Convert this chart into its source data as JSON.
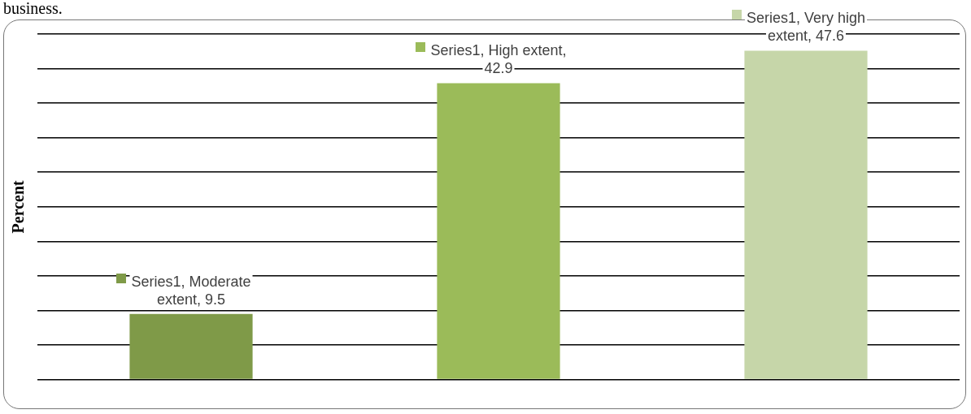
{
  "chart_data": {
    "type": "bar",
    "annotations": [
      "business."
    ],
    "ylabel": "Percent",
    "categories": [
      null,
      null,
      null
    ],
    "values": [
      9.5,
      42.9,
      47.6
    ],
    "colors": [
      "#7f9a48",
      "#9bbb59",
      "#c6d6a9"
    ],
    "value_labels": [
      "Series1, Moderate extent, 9.5",
      "Series1, High extent, 42.9",
      "Series1, Very high extent, 47.6"
    ],
    "ylim": [
      0,
      50
    ],
    "yticks": [
      {
        "value": 0,
        "label": null
      },
      {
        "value": 5,
        "label": null
      },
      {
        "value": 10,
        "label": null
      },
      {
        "value": 15,
        "label": null
      },
      {
        "value": 20,
        "label": null
      },
      {
        "value": 25,
        "label": null
      },
      {
        "value": 30,
        "label": null
      },
      {
        "value": 35,
        "label": null
      },
      {
        "value": 40,
        "label": null
      },
      {
        "value": 45,
        "label": null
      },
      {
        "value": 50,
        "label": null
      }
    ],
    "grid": "y"
  }
}
